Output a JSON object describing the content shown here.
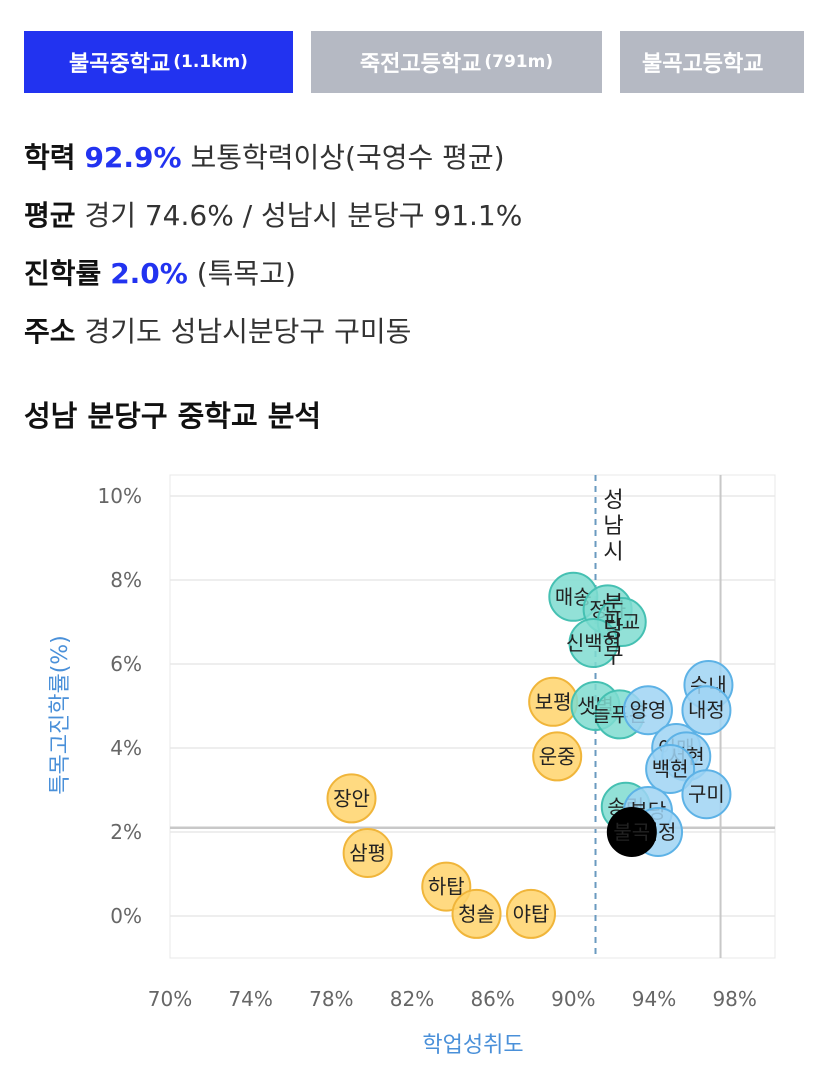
{
  "tabs": [
    {
      "name": "불곡중학교",
      "dist": "(1.1km)",
      "active": true
    },
    {
      "name": "죽전고등학교",
      "dist": "(791m)",
      "active": false
    },
    {
      "name": "불곡고등학교",
      "dist": "",
      "active": false
    }
  ],
  "info": {
    "achievement": {
      "key": "학력",
      "value": "92.9%",
      "desc": "보통학력이상(국영수 평균)"
    },
    "average": {
      "key": "평균",
      "desc": "경기 74.6% / 성남시 분당구 91.1%"
    },
    "advancement": {
      "key": "진학률",
      "value": "2.0%",
      "desc": "(특목고)"
    },
    "address": {
      "key": "주소",
      "desc": "경기도 성남시분당구 구미동"
    }
  },
  "section_title": "성남 분당구 중학교 분석",
  "chart_data": {
    "type": "scatter",
    "xlabel": "학업성취도",
    "ylabel": "특목고진학률(%)",
    "xlim": [
      70,
      100
    ],
    "ylim": [
      -1,
      10.5
    ],
    "x_ticks": [
      {
        "v": 70,
        "t": "70%"
      },
      {
        "v": 74,
        "t": "74%"
      },
      {
        "v": 78,
        "t": "78%"
      },
      {
        "v": 82,
        "t": "82%"
      },
      {
        "v": 86,
        "t": "86%"
      },
      {
        "v": 90,
        "t": "90%"
      },
      {
        "v": 94,
        "t": "94%"
      },
      {
        "v": 98,
        "t": "98%"
      }
    ],
    "y_ticks": [
      {
        "v": 0,
        "t": "0%"
      },
      {
        "v": 2,
        "t": "2%"
      },
      {
        "v": 4,
        "t": "4%"
      },
      {
        "v": 6,
        "t": "6%"
      },
      {
        "v": 8,
        "t": "8%"
      },
      {
        "v": 10,
        "t": "10%"
      }
    ],
    "ref_vertical": {
      "x": 91.1,
      "label": "성남시 분당구"
    },
    "ref_lines": {
      "x": 97.3,
      "y": 2.1
    },
    "colors": {
      "yellow": "#ffd36b",
      "yellow_stroke": "#f0b53a",
      "teal": "#7fdcd0",
      "teal_stroke": "#45c0b2",
      "blue": "#9fd3f3",
      "blue_stroke": "#5db2e6",
      "black": "#000000",
      "grid": "#e8e8e8"
    },
    "points": [
      {
        "label": "장안",
        "x": 79.0,
        "y": 2.8,
        "group": "yellow"
      },
      {
        "label": "삼평",
        "x": 79.8,
        "y": 1.5,
        "group": "yellow"
      },
      {
        "label": "하탑",
        "x": 83.7,
        "y": 0.7,
        "group": "yellow"
      },
      {
        "label": "청솔",
        "x": 85.2,
        "y": 0.05,
        "group": "yellow"
      },
      {
        "label": "야탑",
        "x": 87.9,
        "y": 0.05,
        "group": "yellow"
      },
      {
        "label": "보평",
        "x": 89.0,
        "y": 5.1,
        "group": "yellow"
      },
      {
        "label": "운중",
        "x": 89.2,
        "y": 3.8,
        "group": "yellow"
      },
      {
        "label": "매송",
        "x": 90.0,
        "y": 7.6,
        "group": "teal"
      },
      {
        "label": "정자",
        "x": 91.7,
        "y": 7.3,
        "group": "teal"
      },
      {
        "label": "판교",
        "x": 92.4,
        "y": 7.0,
        "group": "teal"
      },
      {
        "label": "신백현",
        "x": 91.0,
        "y": 6.5,
        "group": "teal"
      },
      {
        "label": "샛별",
        "x": 91.1,
        "y": 5.0,
        "group": "teal"
      },
      {
        "label": "늘푸른",
        "x": 92.3,
        "y": 4.8,
        "group": "teal"
      },
      {
        "label": "송림",
        "x": 92.6,
        "y": 2.6,
        "group": "teal"
      },
      {
        "label": "양영",
        "x": 93.7,
        "y": 4.9,
        "group": "blue"
      },
      {
        "label": "수내",
        "x": 96.7,
        "y": 5.5,
        "group": "blue"
      },
      {
        "label": "내정",
        "x": 96.6,
        "y": 4.9,
        "group": "blue"
      },
      {
        "label": "이매",
        "x": 95.1,
        "y": 4.0,
        "group": "blue"
      },
      {
        "label": "서현",
        "x": 95.6,
        "y": 3.8,
        "group": "blue"
      },
      {
        "label": "백현",
        "x": 94.8,
        "y": 3.5,
        "group": "blue"
      },
      {
        "label": "구미",
        "x": 96.6,
        "y": 2.9,
        "group": "blue"
      },
      {
        "label": "분당",
        "x": 93.7,
        "y": 2.5,
        "group": "blue"
      },
      {
        "label": "내정",
        "x": 94.2,
        "y": 2.0,
        "group": "blue"
      },
      {
        "label": "불곡",
        "x": 92.9,
        "y": 2.0,
        "group": "black"
      }
    ]
  }
}
